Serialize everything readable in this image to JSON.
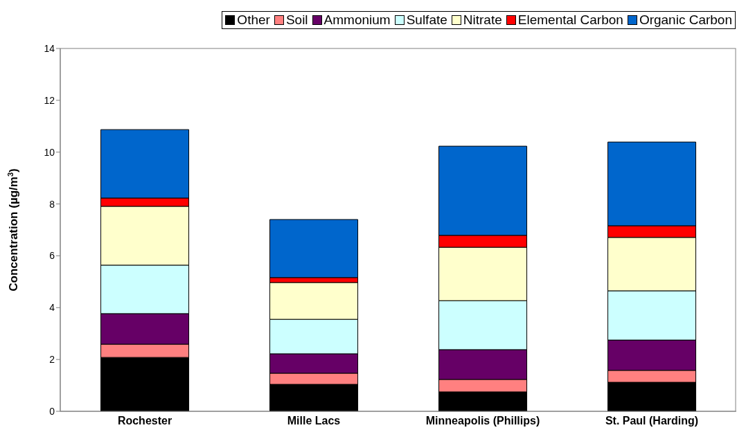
{
  "chart_data": {
    "type": "bar",
    "stacked": true,
    "ylabel": "Concentration (µg/m$^{3}$)",
    "categories": [
      "Rochester",
      "Mille Lacs",
      "Minneapolis (Phillips)",
      "St. Paul (Harding)"
    ],
    "series": [
      {
        "name": "Other",
        "color": "#000000",
        "values": [
          2.08,
          1.04,
          0.75,
          1.12
        ]
      },
      {
        "name": "Soil",
        "color": "#ff8080",
        "values": [
          0.51,
          0.43,
          0.48,
          0.46
        ]
      },
      {
        "name": "Ammonium",
        "color": "#660066",
        "values": [
          1.18,
          0.75,
          1.15,
          1.17
        ]
      },
      {
        "name": "Sulfate",
        "color": "#ccffff",
        "values": [
          1.87,
          1.33,
          1.89,
          1.9
        ]
      },
      {
        "name": "Nitrate",
        "color": "#ffffcc",
        "values": [
          2.27,
          1.42,
          2.06,
          2.06
        ]
      },
      {
        "name": "Elemental Carbon",
        "color": "#ff0000",
        "values": [
          0.32,
          0.19,
          0.46,
          0.45
        ]
      },
      {
        "name": "Organic Carbon",
        "color": "#0066cc",
        "values": [
          2.64,
          2.24,
          3.44,
          3.23
        ]
      }
    ],
    "ylim": [
      0,
      14
    ],
    "yticks": [
      0,
      2,
      4,
      6,
      8,
      10,
      12,
      14
    ],
    "legend": "top"
  }
}
